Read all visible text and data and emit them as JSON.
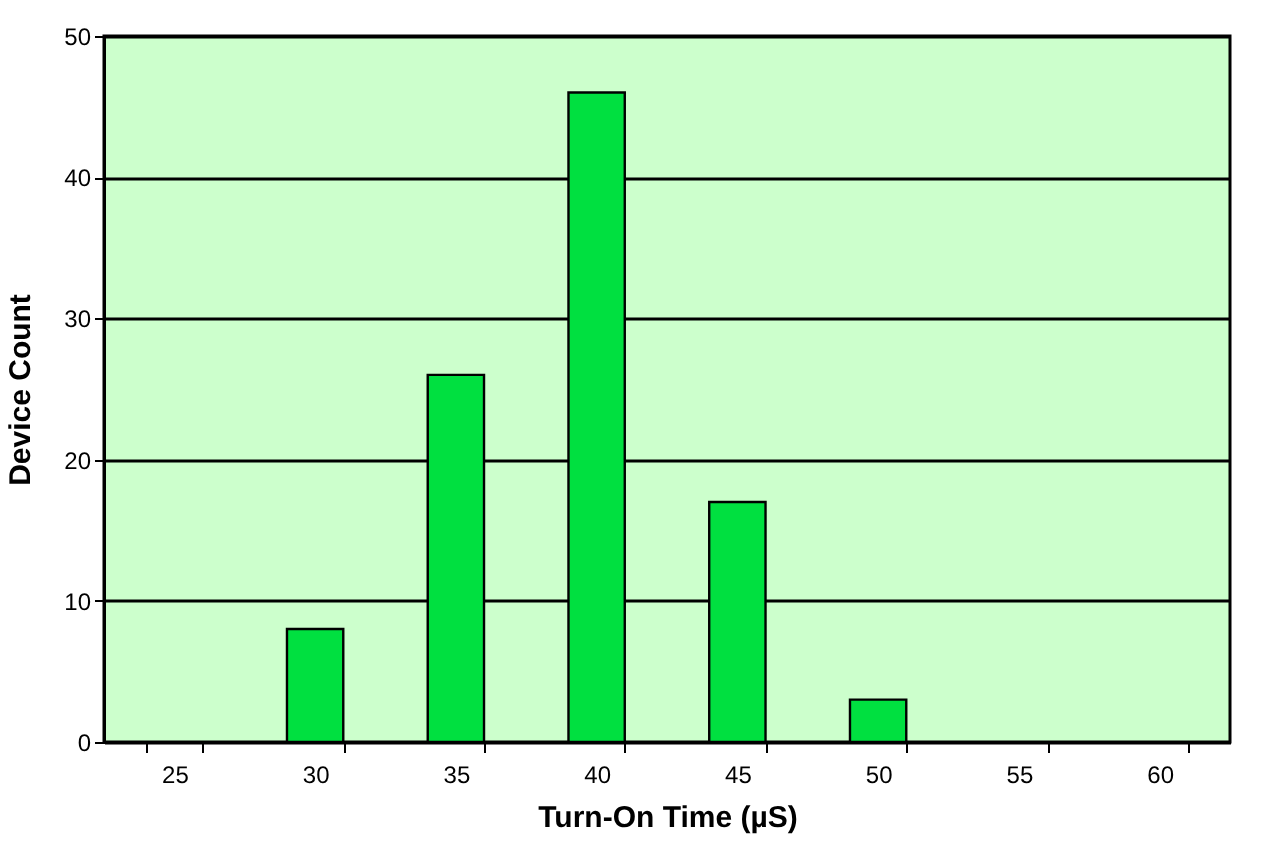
{
  "chart_data": {
    "type": "bar",
    "xlabel": "Turn-On Time (µS)",
    "ylabel": "Device Count",
    "categories": [
      "25",
      "30",
      "35",
      "40",
      "45",
      "50",
      "55",
      "60"
    ],
    "values": [
      null,
      8,
      26,
      46,
      17,
      3,
      null,
      null
    ],
    "color": "#00e040",
    "ylim": [
      0,
      50
    ],
    "yticks": [
      0,
      10,
      20,
      30,
      40,
      50
    ],
    "grid": "y"
  }
}
